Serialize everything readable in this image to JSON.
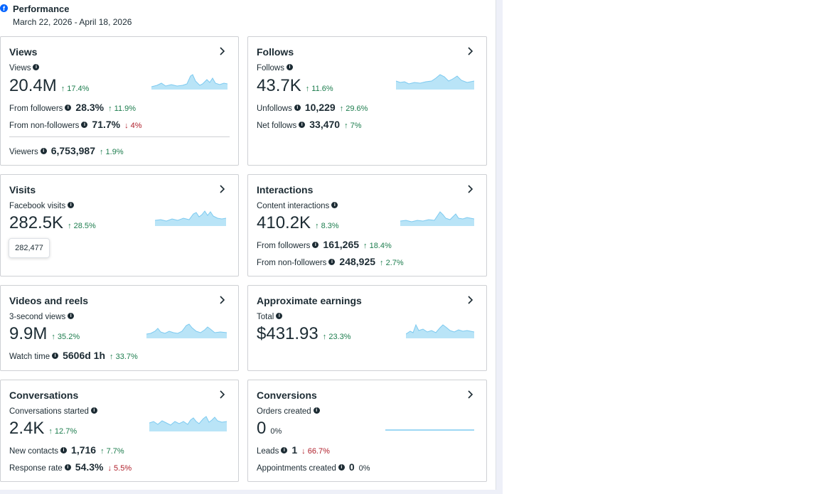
{
  "header": {
    "title": "Performance",
    "date_range": "March 22, 2026 - April 18, 2026",
    "icon": "facebook-icon"
  },
  "colors": {
    "accent": "#0866ff",
    "positive": "#1d7d4e",
    "negative": "#b0212d",
    "spark_fill": "#b9e4f7",
    "spark_line": "#7dcaf0"
  },
  "cards": {
    "views": {
      "title": "Views",
      "primary_label": "Views",
      "primary_value": "20.4M",
      "primary_change": "↑ 17.4%",
      "rows": [
        {
          "label": "From followers",
          "value": "28.3%",
          "change": "↑ 11.9%"
        },
        {
          "label": "From non-followers",
          "value": "71.7%",
          "change": "↓ 4%"
        },
        {
          "label": "Viewers",
          "value": "6,753,987",
          "change": "↑ 1.9%"
        }
      ]
    },
    "follows": {
      "title": "Follows",
      "primary_label": "Follows",
      "primary_value": "43.7K",
      "primary_change": "↑ 11.6%",
      "rows": [
        {
          "label": "Unfollows",
          "value": "10,229",
          "change": "↑ 29.6%"
        },
        {
          "label": "Net follows",
          "value": "33,470",
          "change": "↑ 7%"
        }
      ]
    },
    "visits": {
      "title": "Visits",
      "primary_label": "Facebook visits",
      "primary_value": "282.5K",
      "primary_change": "↑ 28.5%",
      "tooltip": "282,477"
    },
    "interactions": {
      "title": "Interactions",
      "primary_label": "Content interactions",
      "primary_value": "410.2K",
      "primary_change": "↑ 8.3%",
      "rows": [
        {
          "label": "From followers",
          "value": "161,265",
          "change": "↑ 18.4%"
        },
        {
          "label": "From non-followers",
          "value": "248,925",
          "change": "↑ 2.7%"
        }
      ]
    },
    "videos": {
      "title": "Videos and reels",
      "primary_label": "3-second views",
      "primary_value": "9.9M",
      "primary_change": "↑ 35.2%",
      "rows": [
        {
          "label": "Watch time",
          "value": "5606d 1h",
          "change": "↑ 33.7%"
        }
      ]
    },
    "earnings": {
      "title": "Approximate earnings",
      "primary_label": "Total",
      "primary_value": "$431.93",
      "primary_change": "↑ 23.3%"
    },
    "conversations": {
      "title": "Conversations",
      "primary_label": "Conversations started",
      "primary_value": "2.4K",
      "primary_change": "↑ 12.7%",
      "rows": [
        {
          "label": "New contacts",
          "value": "1,716",
          "change": "↑ 7.7%"
        },
        {
          "label": "Response rate",
          "value": "54.3%",
          "change": "↓ 5.5%"
        }
      ]
    },
    "conversions": {
      "title": "Conversions",
      "primary_label": "Orders created",
      "primary_value": "0",
      "primary_change": "0%",
      "rows": [
        {
          "label": "Leads",
          "value": "1",
          "change": "↓ 66.7%"
        },
        {
          "label": "Appointments created",
          "value": "0",
          "change": "0%"
        }
      ]
    }
  }
}
